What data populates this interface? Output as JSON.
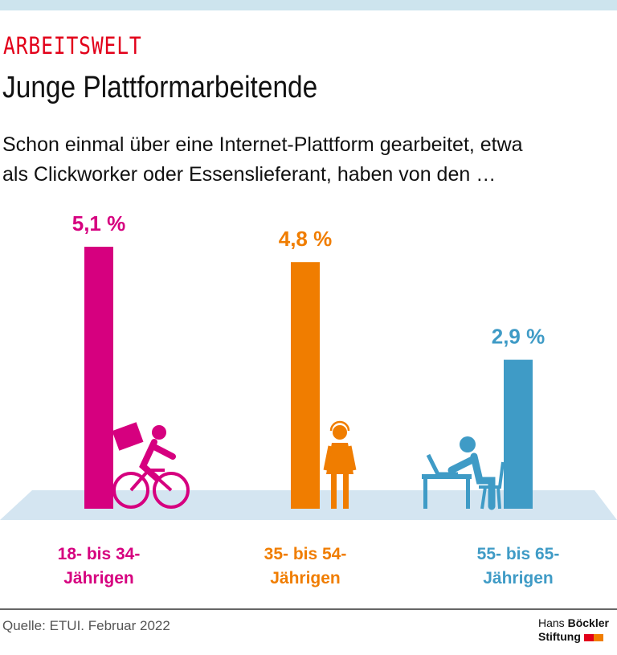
{
  "header": {
    "kicker": "ARBEITSWELT",
    "title": "Junge Plattformarbeitende",
    "subtitle_line1": "Schon einmal über eine Internet-Plattform gearbeitet, etwa",
    "subtitle_line2": "als Clickworker oder Essenslieferant, haben von den …"
  },
  "chart_data": {
    "type": "bar",
    "categories": [
      "18- bis 34-Jährigen",
      "35- bis 54-Jährigen",
      "55- bis 65-Jährigen"
    ],
    "category_lines": [
      [
        "18- bis 34-",
        "Jährigen"
      ],
      [
        "35- bis 54-",
        "Jährigen"
      ],
      [
        "55- bis 65-",
        "Jährigen"
      ]
    ],
    "values": [
      5.1,
      4.8,
      2.9
    ],
    "value_labels": [
      "5,1 %",
      "4,8 %",
      "2,9 %"
    ],
    "unit": "%",
    "colors": [
      "#d6007f",
      "#f07d00",
      "#3f9bc6"
    ],
    "icons": [
      "cyclist-courier-icon",
      "headset-worker-icon",
      "laptop-worker-icon"
    ],
    "ylim": [
      0,
      5.1
    ],
    "grid": false
  },
  "footer": {
    "source": "Quelle: ETUI. Februar 2022",
    "logo_line1_a": "Hans ",
    "logo_line1_b": "Böckler",
    "logo_line2": "Stiftung",
    "logo_colors": [
      "#e2001a",
      "#f07d00"
    ]
  }
}
